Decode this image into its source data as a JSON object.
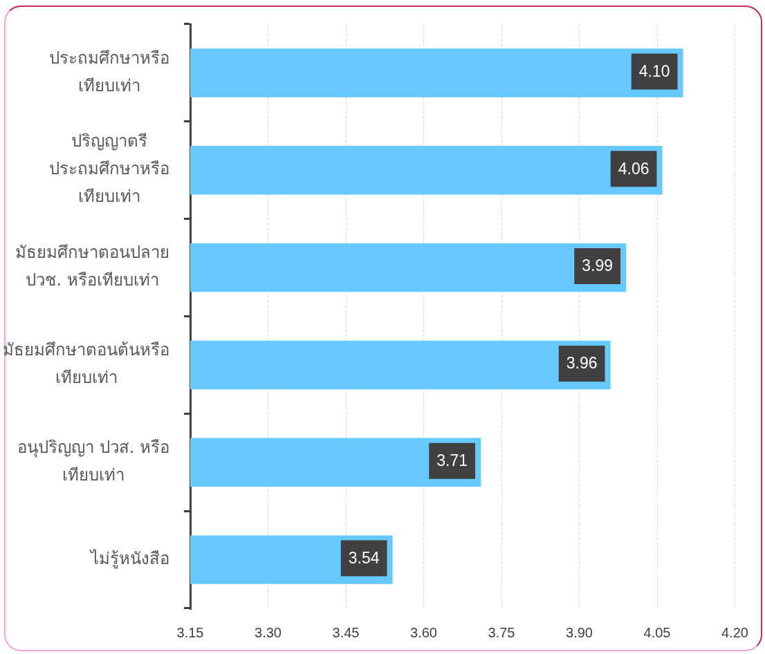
{
  "chart_data": {
    "type": "bar",
    "orientation": "horizontal",
    "categories": [
      "ประถมศึกษาหรือ\nเทียบเท่า",
      "ปริญญาตรี\nประถมศึกษาหรือ\nเทียบเท่า",
      "มัธยมศึกษาตอนปลาย\nปวช. หรือเทียบเท่า",
      "มัธยมศึกษาตอนต้นหรือ\nเทียบเท่า",
      "อนุปริญญา ปวส. หรือ\nเทียบเท่า",
      "ไม่รู้หนังสือ"
    ],
    "values": [
      4.1,
      4.06,
      3.99,
      3.96,
      3.71,
      3.54
    ],
    "value_labels": [
      "4.10",
      "4.06",
      "3.99",
      "3.96",
      "3.71",
      "3.54"
    ],
    "color": "#66c9ff",
    "xlim": [
      3.15,
      4.2
    ],
    "xticks": [
      3.15,
      {
        "value": 3.3,
        "label": "3.30"
      },
      3.45,
      {
        "value": 3.6,
        "label": "3.60"
      },
      3.75,
      {
        "value": 3.9,
        "label": "3.90"
      },
      4.05,
      {
        "value": 4.2,
        "label": "4.20"
      }
    ],
    "grid": "x"
  }
}
